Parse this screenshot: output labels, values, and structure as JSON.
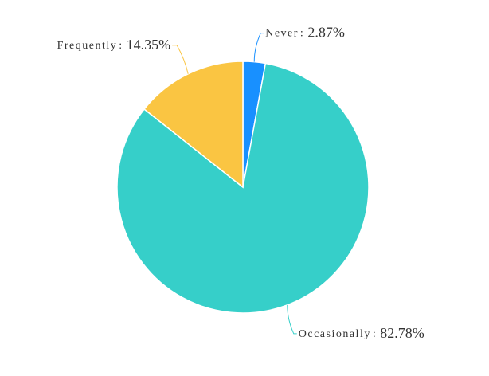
{
  "chart_data": {
    "type": "pie",
    "categories": [
      "Never",
      "Occasionally",
      "Frequently"
    ],
    "values": [
      2.87,
      82.78,
      14.35
    ],
    "value_labels": [
      "2.87%",
      "82.78%",
      "14.35%"
    ],
    "label_separator": ":",
    "colors": [
      "#1890ff",
      "#36cfc9",
      "#fac542"
    ]
  }
}
